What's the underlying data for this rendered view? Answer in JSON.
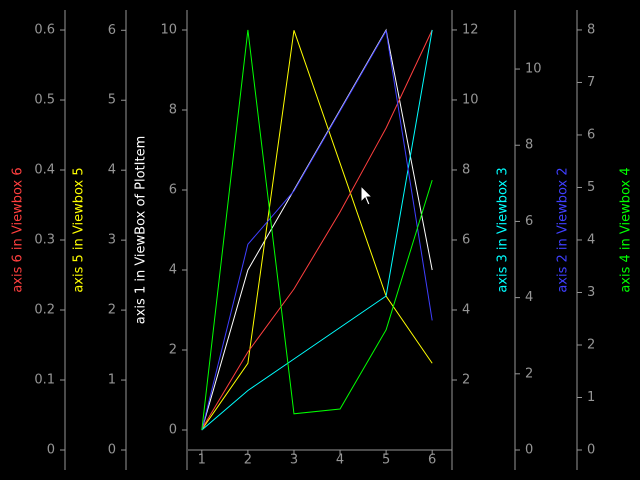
{
  "chart_data": {
    "type": "line",
    "x": [
      1,
      2,
      3,
      4,
      5,
      6
    ],
    "xlim": [
      0.7,
      6.43
    ],
    "xticks": [
      1,
      2,
      3,
      4,
      5,
      6
    ],
    "axes": [
      {
        "title": "axis 1 in ViewBox of PlotItem",
        "color": "#ffffff",
        "ylim": [
          -0.5,
          10.5
        ],
        "yticks": [
          0,
          2,
          4,
          6,
          8,
          10
        ]
      },
      {
        "title": "axis 5 in Viewbox 5",
        "color": "#ffff00",
        "ylim": [
          0,
          6.29
        ],
        "yticks": [
          0,
          1,
          2,
          3,
          4,
          5,
          6
        ]
      },
      {
        "title": "axis 6 in Viewbox 6",
        "color": "#ff3f3f",
        "ylim": [
          0,
          0.6286
        ],
        "yticks": [
          0,
          0.1,
          0.2,
          0.3,
          0.4,
          0.5,
          0.6
        ]
      },
      {
        "title": "axis 3 in Viewbox 3",
        "color": "#00ffff",
        "ylim": [
          0,
          12.57
        ],
        "yticks": [
          2,
          4,
          6,
          8,
          10,
          12
        ]
      },
      {
        "title": "axis 2 in Viewbox 2",
        "color": "#3f3fff",
        "ylim": [
          0,
          11.55
        ],
        "yticks": [
          0,
          2,
          4,
          6,
          8,
          10
        ]
      },
      {
        "title": "axis 4 in Viewbox 4",
        "color": "#00ff00",
        "ylim": [
          0,
          8.38
        ],
        "yticks": [
          0,
          1,
          2,
          3,
          4,
          5,
          6,
          7,
          8
        ]
      }
    ],
    "series": [
      {
        "axis": 0,
        "color": "#ffffff",
        "values": [
          0,
          4,
          6,
          8,
          10,
          4
        ]
      },
      {
        "axis": 1,
        "color": "#ffff00",
        "values": [
          0.29,
          1.24,
          6,
          4.1,
          2.2,
          1.24
        ]
      },
      {
        "axis": 2,
        "color": "#ff3f3f",
        "values": [
          0.03,
          0.14,
          0.23,
          0.34,
          0.46,
          0.6
        ]
      },
      {
        "axis": 3,
        "color": "#00ffff",
        "values": [
          0.57,
          1.7,
          2.6,
          3.5,
          4.4,
          12
        ]
      },
      {
        "axis": 4,
        "color": "#3f3fff",
        "values": [
          0.52,
          5.4,
          6.8,
          8.9,
          11,
          3.4
        ]
      },
      {
        "axis": 5,
        "color": "#00ff00",
        "values": [
          0.38,
          8,
          0.69,
          0.78,
          2.29,
          5.14
        ]
      }
    ]
  }
}
